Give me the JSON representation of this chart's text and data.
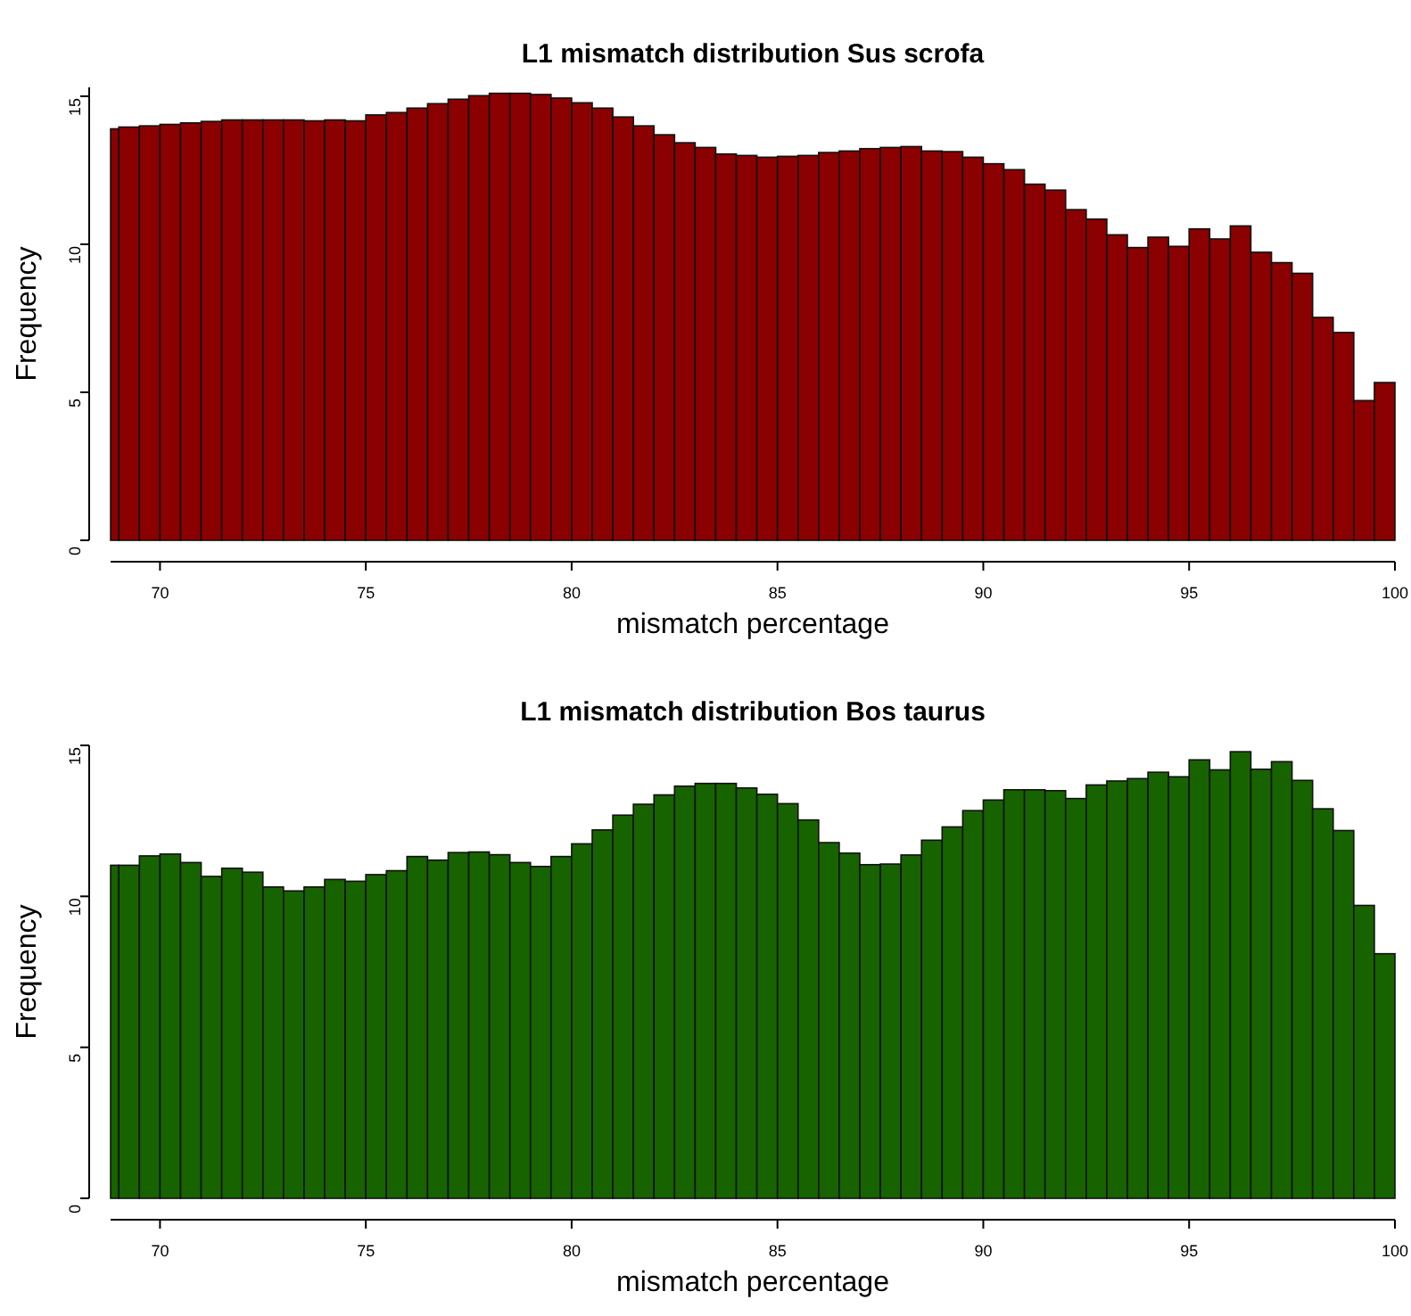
{
  "chart_data": [
    {
      "type": "histogram",
      "title": "L1 mismatch distribution Sus scrofa",
      "xlabel": "mismatch percentage",
      "ylabel": "Frequency",
      "color": "#8b0000",
      "bins": [
        68.8,
        69,
        69.5,
        70,
        70.5,
        71,
        71.5,
        72,
        72.5,
        73,
        73.5,
        74,
        74.5,
        75,
        75.5,
        76,
        76.5,
        77,
        77.5,
        78,
        78.5,
        79,
        79.5,
        80,
        80.5,
        81,
        81.5,
        82,
        82.5,
        83,
        83.5,
        84,
        84.5,
        85,
        85.5,
        86,
        86.5,
        87,
        87.5,
        88,
        88.5,
        89,
        89.5,
        90,
        90.5,
        91,
        91.5,
        92,
        92.5,
        93,
        93.5,
        94,
        94.5,
        95,
        95.5,
        96,
        96.5,
        97,
        97.5,
        98,
        98.5,
        99,
        99.5,
        100
      ],
      "values": [
        13.9,
        13.96,
        14.0,
        14.05,
        14.1,
        14.15,
        14.2,
        14.2,
        14.2,
        14.2,
        14.17,
        14.2,
        14.17,
        14.37,
        14.45,
        14.6,
        14.75,
        14.9,
        15.02,
        15.1,
        15.1,
        15.06,
        14.94,
        14.78,
        14.6,
        14.3,
        14.0,
        13.7,
        13.43,
        13.27,
        13.05,
        13.0,
        12.94,
        12.97,
        13.0,
        13.1,
        13.15,
        13.23,
        13.27,
        13.3,
        13.15,
        13.13,
        12.94,
        12.72,
        12.52,
        12.03,
        11.83,
        11.17,
        10.85,
        10.32,
        9.89,
        10.24,
        9.93,
        10.52,
        10.18,
        10.62,
        9.73,
        9.38,
        9.02,
        7.53,
        7.02,
        4.72,
        5.33
      ],
      "xlim": [
        68.8,
        100
      ],
      "xticks": [
        70,
        75,
        80,
        85,
        90,
        95,
        100
      ],
      "ylim": [
        0,
        15.3
      ],
      "yticks": [
        0,
        5,
        10,
        15
      ],
      "grid": false
    },
    {
      "type": "histogram",
      "title": "L1 mismatch distribution Bos taurus",
      "xlabel": "mismatch percentage",
      "ylabel": "Frequency",
      "color": "#176300",
      "bins": [
        68.8,
        69,
        69.5,
        70,
        70.5,
        71,
        71.5,
        72,
        72.5,
        73,
        73.5,
        74,
        74.5,
        75,
        75.5,
        76,
        76.5,
        77,
        77.5,
        78,
        78.5,
        79,
        79.5,
        80,
        80.5,
        81,
        81.5,
        82,
        82.5,
        83,
        83.5,
        84,
        84.5,
        85,
        85.5,
        86,
        86.5,
        87,
        87.5,
        88,
        88.5,
        89,
        89.5,
        90,
        90.5,
        91,
        91.5,
        92,
        92.5,
        93,
        93.5,
        94,
        94.5,
        95,
        95.5,
        96,
        96.5,
        97,
        97.5,
        98,
        98.5,
        99,
        99.5,
        100
      ],
      "values": [
        11.03,
        11.03,
        11.34,
        11.4,
        11.12,
        10.66,
        10.93,
        10.8,
        10.31,
        10.18,
        10.31,
        10.56,
        10.5,
        10.72,
        10.85,
        11.32,
        11.2,
        11.45,
        11.47,
        11.38,
        11.12,
        10.99,
        11.32,
        11.74,
        12.2,
        12.69,
        13.05,
        13.36,
        13.65,
        13.74,
        13.74,
        13.59,
        13.38,
        13.07,
        12.53,
        11.78,
        11.43,
        11.05,
        11.07,
        11.37,
        11.86,
        12.3,
        12.84,
        13.19,
        13.53,
        13.53,
        13.5,
        13.24,
        13.69,
        13.82,
        13.9,
        14.11,
        13.96,
        14.52,
        14.19,
        14.79,
        14.21,
        14.46,
        13.84,
        12.9,
        12.18,
        9.7,
        8.1
      ],
      "xlim": [
        68.8,
        100
      ],
      "xticks": [
        70,
        75,
        80,
        85,
        90,
        95,
        100
      ],
      "ylim": [
        0,
        15
      ],
      "yticks": [
        0,
        5,
        10,
        15
      ],
      "grid": false
    }
  ]
}
